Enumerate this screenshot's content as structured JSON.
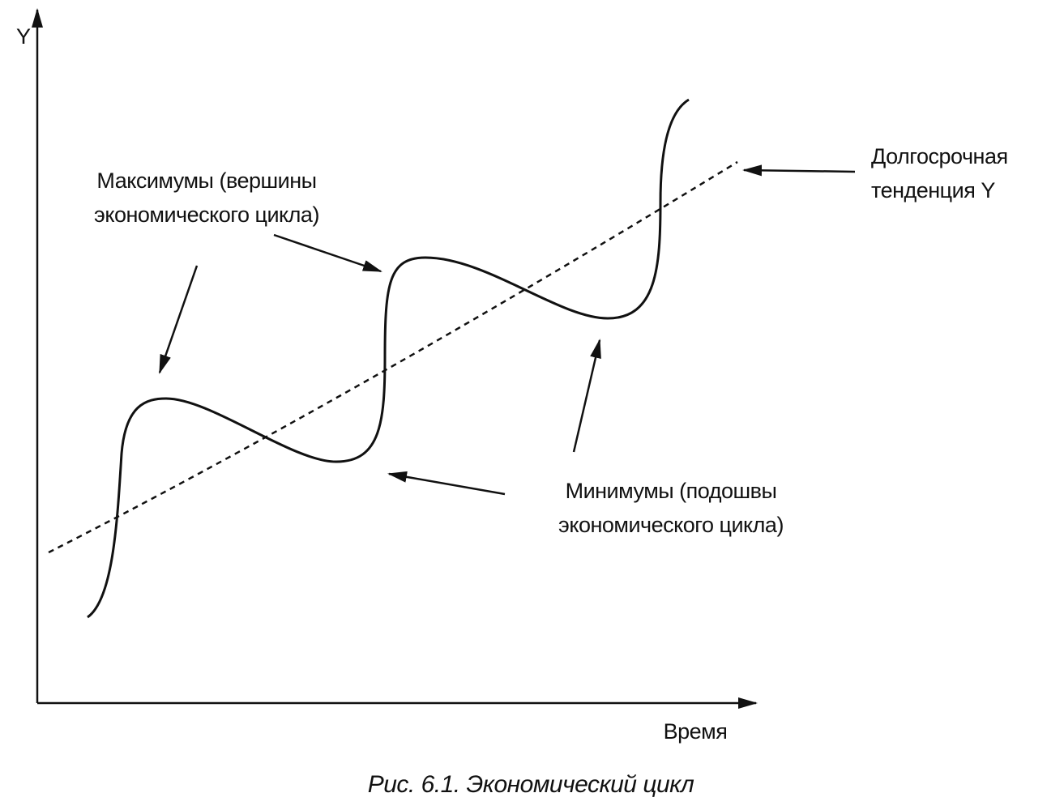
{
  "axes": {
    "y_label": "Y",
    "x_label": "Время"
  },
  "labels": {
    "maxima": [
      "Максимумы (вершины",
      "экономического цикла)"
    ],
    "trend": [
      "Долгосрочная",
      "тенденция Y"
    ],
    "minima": [
      "Минимумы (подошвы",
      "экономического цикла)"
    ]
  },
  "caption": "Рис. 6.1. Экономический цикл"
}
